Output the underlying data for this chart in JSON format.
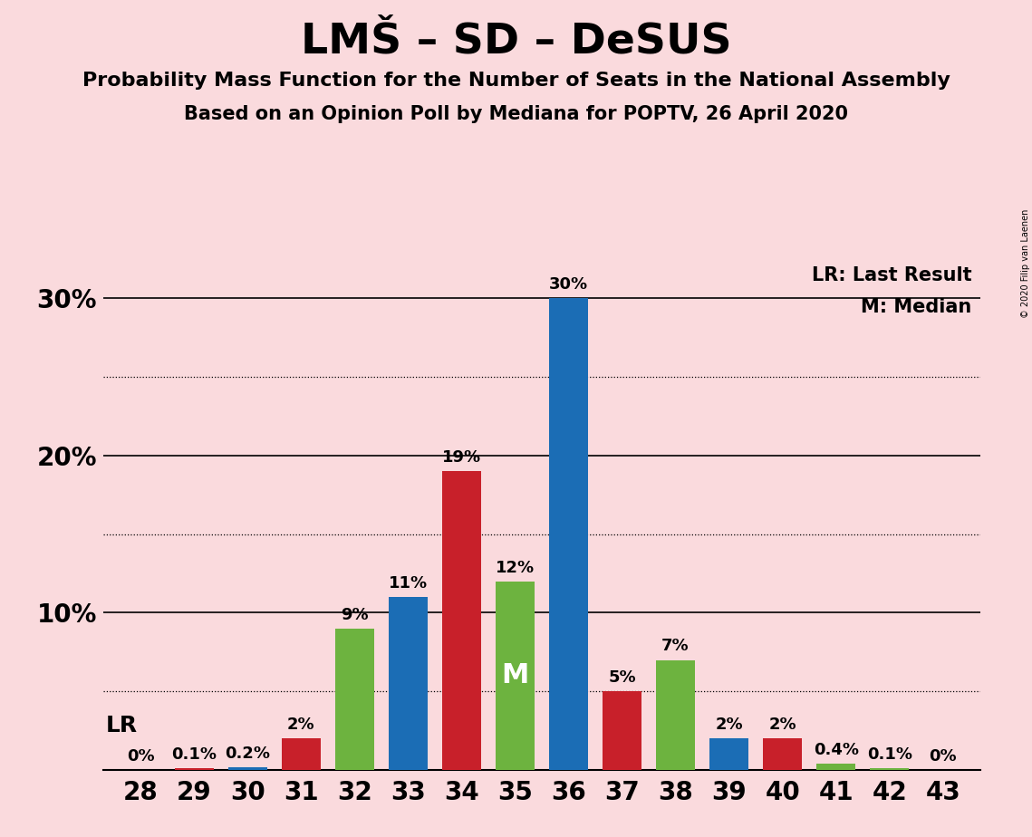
{
  "title": "LMŠ – SD – DeSUS",
  "subtitle1": "Probability Mass Function for the Number of Seats in the National Assembly",
  "subtitle2": "Based on an Opinion Poll by Mediana for POPTV, 26 April 2020",
  "background_color": "#FADADD",
  "seats": [
    28,
    29,
    30,
    31,
    32,
    33,
    34,
    35,
    36,
    37,
    38,
    39,
    40,
    41,
    42,
    43
  ],
  "blue_values": [
    0.0,
    0.0,
    0.2,
    0.0,
    0.0,
    11.0,
    0.0,
    0.0,
    30.0,
    0.0,
    0.0,
    2.0,
    0.0,
    0.0,
    0.0,
    0.0
  ],
  "red_values": [
    0.0,
    0.1,
    0.0,
    2.0,
    0.0,
    0.0,
    19.0,
    0.0,
    0.0,
    5.0,
    0.0,
    0.0,
    2.0,
    0.0,
    0.0,
    0.0
  ],
  "green_values": [
    0.0,
    0.0,
    0.0,
    0.0,
    9.0,
    0.0,
    0.0,
    12.0,
    0.0,
    0.0,
    7.0,
    0.0,
    0.0,
    0.4,
    0.1,
    0.0
  ],
  "blue_color": "#1B6DB5",
  "red_color": "#C8202A",
  "green_color": "#6DB33F",
  "ylim": [
    0,
    33
  ],
  "solid_gridlines": [
    0,
    10,
    20,
    30
  ],
  "dotted_gridlines": [
    5,
    15,
    25
  ],
  "lr_seat": 30,
  "median_seat": 35,
  "legend_lr": "LR: Last Result",
  "legend_m": "M: Median",
  "copyright": "© 2020 Filip van Laenen",
  "bar_labels": {
    "28_blue": "0%",
    "29_red": "0.1%",
    "30_blue": "0.2%",
    "31_red": "2%",
    "32_green": "9%",
    "33_blue": "11%",
    "34_red": "19%",
    "35_green": "12%",
    "36_blue": "30%",
    "37_red": "5%",
    "38_green": "7%",
    "39_blue": "2%",
    "40_red": "2%",
    "41_green": "0.4%",
    "42_green": "0.1%",
    "43_green": "0%"
  },
  "label_fontsize": 13,
  "ytick_fontsize": 20,
  "xtick_fontsize": 20,
  "title_fontsize": 34,
  "subtitle1_fontsize": 16,
  "subtitle2_fontsize": 15,
  "legend_fontsize": 15,
  "lr_fontsize": 18,
  "median_label_fontsize": 22
}
